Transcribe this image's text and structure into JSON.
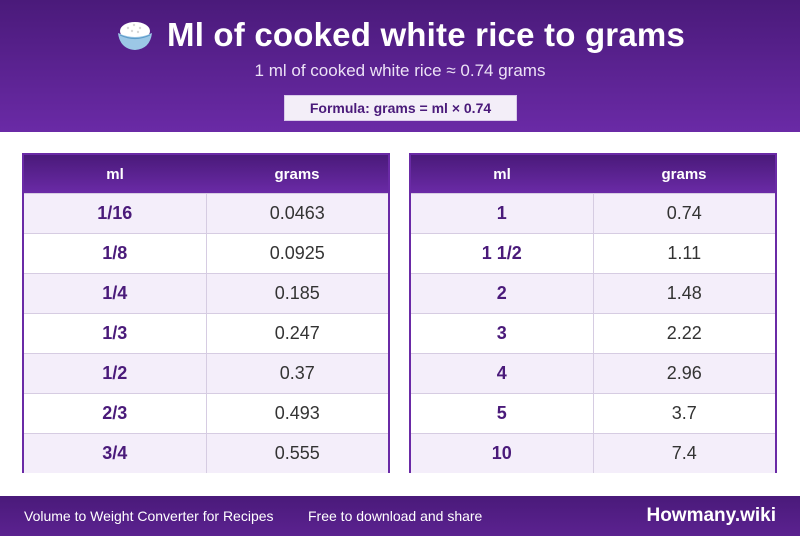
{
  "header": {
    "icon": "rice-bowl-icon",
    "title": "Ml of cooked white rice to grams",
    "subtitle": "1 ml of cooked white rice ≈ 0.74 grams",
    "formula": "Formula: grams = ml × 0.74"
  },
  "tables": [
    {
      "headers": {
        "ml": "ml",
        "grams": "grams"
      },
      "rows": [
        {
          "ml": "1/16",
          "grams": "0.0463"
        },
        {
          "ml": "1/8",
          "grams": "0.0925"
        },
        {
          "ml": "1/4",
          "grams": "0.185"
        },
        {
          "ml": "1/3",
          "grams": "0.247"
        },
        {
          "ml": "1/2",
          "grams": "0.37"
        },
        {
          "ml": "2/3",
          "grams": "0.493"
        },
        {
          "ml": "3/4",
          "grams": "0.555"
        }
      ]
    },
    {
      "headers": {
        "ml": "ml",
        "grams": "grams"
      },
      "rows": [
        {
          "ml": "1",
          "grams": "0.74"
        },
        {
          "ml": "1 1/2",
          "grams": "1.11"
        },
        {
          "ml": "2",
          "grams": "1.48"
        },
        {
          "ml": "3",
          "grams": "2.22"
        },
        {
          "ml": "4",
          "grams": "2.96"
        },
        {
          "ml": "5",
          "grams": "3.7"
        },
        {
          "ml": "10",
          "grams": "7.4"
        }
      ]
    }
  ],
  "footer": {
    "left_text": "Volume to Weight Converter for Recipes",
    "middle_text": "Free to download and share",
    "brand": "Howmany.wiki"
  },
  "colors": {
    "primary": "#4a1a7a",
    "accent": "#6a2aa6",
    "row_alt": "#f4eefa"
  }
}
